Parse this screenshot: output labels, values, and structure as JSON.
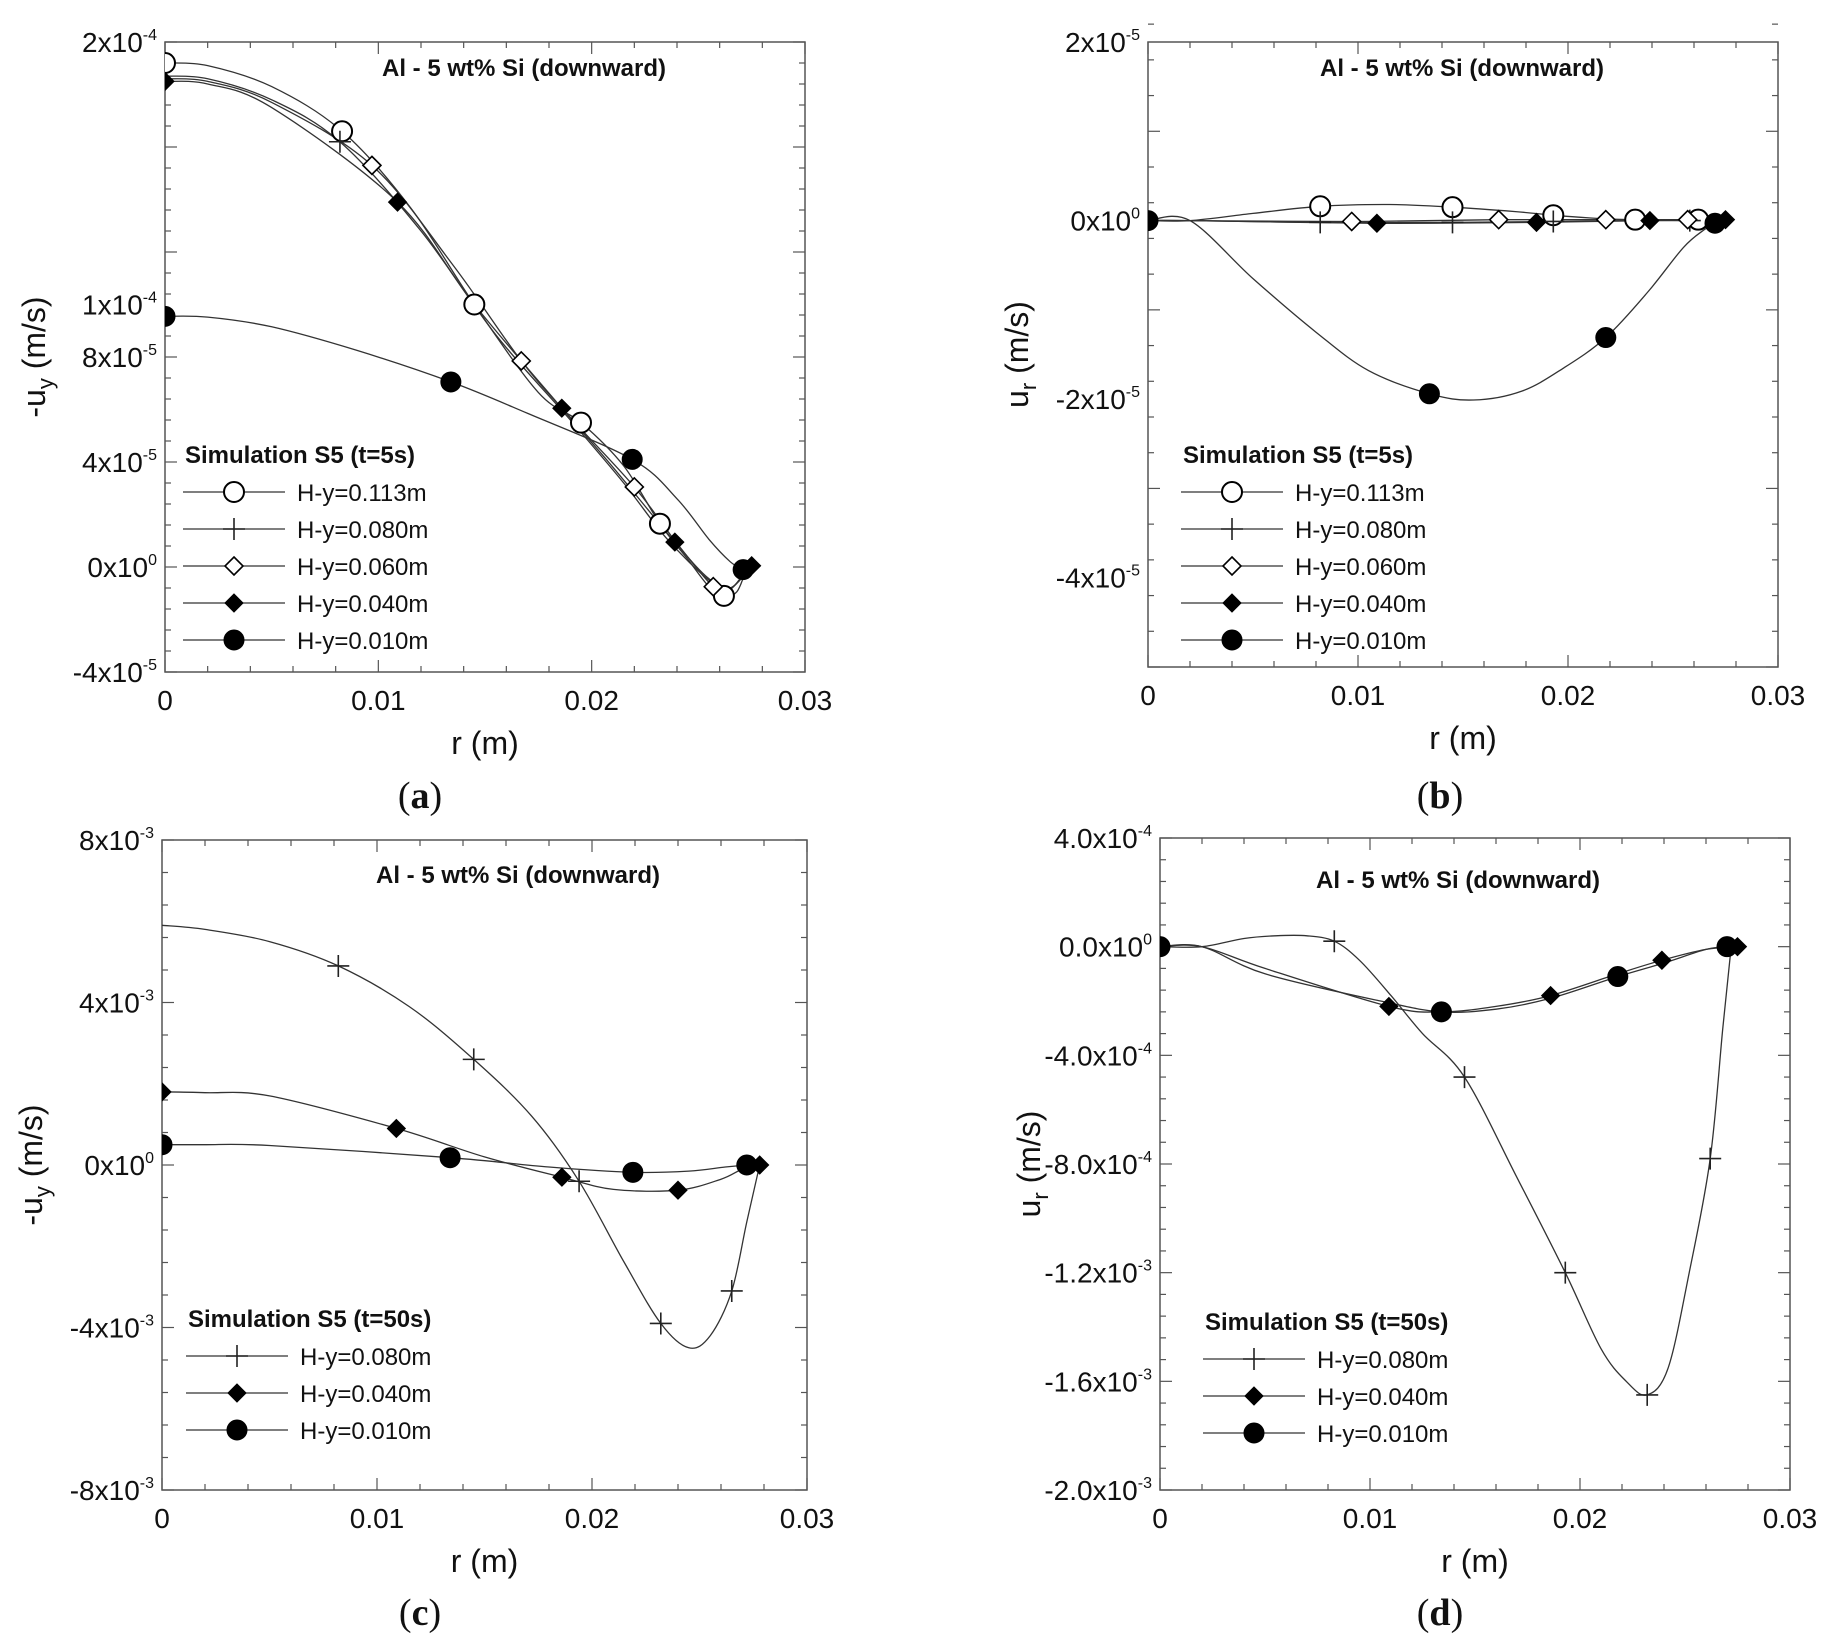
{
  "figure": {
    "panel_labels": [
      "a",
      "b",
      "c",
      "d"
    ],
    "colors": {
      "line": "#333333",
      "marker": "#000000",
      "frame": "#555555"
    }
  },
  "chart_data": [
    {
      "type": "line",
      "panel": "a",
      "title": "Al - 5 wt% Si (downward)",
      "xlabel": "r (m)",
      "ylabel_base": "-u",
      "ylabel_sub": "y",
      "ylabel_unit": " (m/s)",
      "xlim": [
        0,
        0.03
      ],
      "ylim": [
        -4e-05,
        0.0002
      ],
      "xticks": [
        {
          "value": 0,
          "label": "0"
        },
        {
          "value": 0.01,
          "label": "0.01"
        },
        {
          "value": 0.02,
          "label": "0.02"
        },
        {
          "value": 0.03,
          "label": "0.03"
        }
      ],
      "yticks": [
        {
          "value": 0.0002,
          "mant": "2x10",
          "exp": "-4"
        },
        {
          "value": 0.0001,
          "mant": "1x10",
          "exp": "-4"
        },
        {
          "value": 8e-05,
          "mant": "8x10",
          "exp": "-5"
        },
        {
          "value": 4e-05,
          "mant": "4x10",
          "exp": "-5"
        },
        {
          "value": 0,
          "mant": "0x10",
          "exp": "0"
        },
        {
          "value": -4e-05,
          "mant": "-4x10",
          "exp": "-5"
        }
      ],
      "legend_title": "Simulation S5 (t=5s)",
      "series": [
        {
          "name": "H-y=0.113m",
          "marker": "open-circle",
          "x": [
            0,
            0.002,
            0.005,
            0.0083,
            0.0115,
            0.0145,
            0.0175,
            0.0195,
            0.0215,
            0.0232,
            0.0245,
            0.0255,
            0.0262,
            0.0268,
            0.0272
          ],
          "y": [
            0.000192,
            0.000191,
            0.000183,
            0.000166,
            0.000137,
            0.0001,
            6.65e-05,
            5.5e-05,
            3.85e-05,
            1.65e-05,
            3e-06,
            -7.5e-06,
            -1.1e-05,
            -9.5e-06,
            -2e-06
          ],
          "mx": [
            0,
            0.0083,
            0.0145,
            0.0195,
            0.0232,
            0.0262
          ],
          "my": [
            0.000192,
            0.000166,
            0.0001,
            5.5e-05,
            1.65e-05,
            -1.1e-05
          ]
        },
        {
          "name": "H-y=0.080m",
          "marker": "plus",
          "x": [
            0,
            0.002,
            0.005,
            0.0082,
            0.012,
            0.0155,
            0.019,
            0.0215,
            0.0235,
            0.0255,
            0.0265,
            0.0272
          ],
          "y": [
            0.000187,
            0.000186,
            0.000178,
            0.000162,
            0.000128,
            8.85e-05,
            5.6e-05,
            3.2e-05,
            1.1e-05,
            -5e-06,
            -8e-06,
            -1.5e-06
          ],
          "mx": [
            0.0082
          ],
          "my": [
            0.000162
          ]
        },
        {
          "name": "H-y=0.060m",
          "marker": "open-diamond",
          "x": [
            0,
            0.002,
            0.005,
            0.0097,
            0.0135,
            0.0167,
            0.019,
            0.022,
            0.024,
            0.0257,
            0.0265,
            0.0273
          ],
          "y": [
            0.000186,
            0.000185,
            0.000177,
            0.000153,
            0.000115,
            7.85e-05,
            5.7e-05,
            3.05e-05,
            9e-06,
            -7.5e-06,
            -8.5e-06,
            -5e-07
          ],
          "mx": [
            0.0097,
            0.0167,
            0.022,
            0.0257
          ],
          "my": [
            0.000153,
            7.85e-05,
            3.05e-05,
            -7.5e-06
          ]
        },
        {
          "name": "H-y=0.040m",
          "marker": "filled-diamond",
          "x": [
            0,
            0.002,
            0.005,
            0.0109,
            0.0145,
            0.0186,
            0.021,
            0.0239,
            0.0255,
            0.0265,
            0.0275
          ],
          "y": [
            0.000185,
            0.000184,
            0.000175,
            0.000139,
            0.0001,
            6.05e-05,
            3.8e-05,
            9.5e-06,
            -4.5e-06,
            -8e-06,
            5e-07
          ],
          "mx": [
            0,
            0.0109,
            0.0186,
            0.0239,
            0.0275
          ],
          "my": [
            0.000185,
            0.000139,
            6.05e-05,
            9.5e-06,
            5e-07
          ]
        },
        {
          "name": "H-y=0.010m",
          "marker": "filled-circle",
          "x": [
            0,
            0.002,
            0.005,
            0.009,
            0.0134,
            0.017,
            0.0219,
            0.024,
            0.0255,
            0.0265,
            0.0271
          ],
          "y": [
            9.55e-05,
            9.52e-05,
            9.15e-05,
            8.25e-05,
            7.05e-05,
            5.85e-05,
            4.1e-05,
            2.6e-05,
            1.05e-05,
            2e-06,
            -1e-06
          ],
          "mx": [
            0,
            0.0134,
            0.0219,
            0.0271
          ],
          "my": [
            9.55e-05,
            7.05e-05,
            4.1e-05,
            -1e-06
          ]
        }
      ]
    },
    {
      "type": "line",
      "panel": "b",
      "title": "Al - 5 wt% Si (downward)",
      "xlabel": "r (m)",
      "ylabel_base": "u",
      "ylabel_sub": "r",
      "ylabel_unit": " (m/s)",
      "xlim": [
        0,
        0.03
      ],
      "ylim": [
        -5e-05,
        2e-05
      ],
      "xticks": [
        {
          "value": 0,
          "label": "0"
        },
        {
          "value": 0.01,
          "label": "0.01"
        },
        {
          "value": 0.02,
          "label": "0.02"
        },
        {
          "value": 0.03,
          "label": "0.03"
        }
      ],
      "yticks": [
        {
          "value": 2e-05,
          "mant": "2x10",
          "exp": "-5"
        },
        {
          "value": 0,
          "mant": "0x10",
          "exp": "0"
        },
        {
          "value": -2e-05,
          "mant": "-2x10",
          "exp": "-5"
        },
        {
          "value": -4e-05,
          "mant": "-4x10",
          "exp": "-5"
        }
      ],
      "legend_title": "Simulation S5 (t=5s)",
      "series": [
        {
          "name": "H-y=0.113m",
          "marker": "open-circle",
          "x": [
            0,
            0.002,
            0.005,
            0.0082,
            0.0115,
            0.0145,
            0.0175,
            0.0193,
            0.021,
            0.0232,
            0.0262,
            0.0272
          ],
          "y": [
            0,
            0,
            8e-07,
            1.6e-06,
            1.8e-06,
            1.5e-06,
            1e-06,
            6e-07,
            3e-07,
            1e-07,
            1e-07,
            0
          ],
          "mx": [
            0.0082,
            0.0145,
            0.0193,
            0.0232,
            0.0262
          ],
          "my": [
            1.6e-06,
            1.5e-06,
            6e-07,
            1e-07,
            1e-07
          ]
        },
        {
          "name": "H-y=0.080m",
          "marker": "plus",
          "x": [
            0,
            0.002,
            0.008,
            0.0145,
            0.0193,
            0.023,
            0.0258,
            0.0272
          ],
          "y": [
            0,
            0,
            -2e-07,
            -2e-07,
            -1e-07,
            0,
            0,
            0
          ],
          "mx": [
            0.0082,
            0.0145,
            0.0193,
            0.0258
          ],
          "my": [
            -2e-07,
            -2e-07,
            -1e-07,
            0
          ]
        },
        {
          "name": "H-y=0.060m",
          "marker": "open-diamond",
          "x": [
            0,
            0.002,
            0.0097,
            0.0167,
            0.0218,
            0.0257,
            0.0273
          ],
          "y": [
            0,
            0,
            -1e-07,
            1e-07,
            1e-07,
            1e-07,
            0
          ],
          "mx": [
            0.0097,
            0.0167,
            0.0218,
            0.0257
          ],
          "my": [
            -1e-07,
            1e-07,
            1e-07,
            1e-07
          ]
        },
        {
          "name": "H-y=0.040m",
          "marker": "filled-diamond",
          "x": [
            0,
            0.002,
            0.0109,
            0.0185,
            0.0239,
            0.0275
          ],
          "y": [
            0,
            0,
            -3e-07,
            -2e-07,
            0,
            1e-07
          ],
          "mx": [
            0,
            0.0109,
            0.0185,
            0.0239,
            0.0275
          ],
          "my": [
            0,
            -3e-07,
            -2e-07,
            0,
            1e-07
          ]
        },
        {
          "name": "H-y=0.010m",
          "marker": "filled-circle",
          "x": [
            0,
            0.002,
            0.005,
            0.008,
            0.0105,
            0.0134,
            0.0155,
            0.0178,
            0.0198,
            0.0218,
            0.0238,
            0.0255,
            0.0265,
            0.027
          ],
          "y": [
            0,
            0,
            -6.5e-06,
            -1.25e-05,
            -1.68e-05,
            -1.94e-05,
            -2.01e-05,
            -1.91e-05,
            -1.65e-05,
            -1.31e-05,
            -8e-06,
            -3e-06,
            -1e-06,
            -3e-07
          ],
          "mx": [
            0,
            0.0134,
            0.0218,
            0.027
          ],
          "my": [
            0,
            -1.94e-05,
            -1.31e-05,
            -3e-07
          ]
        }
      ]
    },
    {
      "type": "line",
      "panel": "c",
      "title": "Al - 5 wt% Si (downward)",
      "xlabel": "r (m)",
      "ylabel_base": "-u",
      "ylabel_sub": "y",
      "ylabel_unit": " (m/s)",
      "xlim": [
        0,
        0.03
      ],
      "ylim": [
        -0.008,
        0.008
      ],
      "xticks": [
        {
          "value": 0,
          "label": "0"
        },
        {
          "value": 0.01,
          "label": "0.01"
        },
        {
          "value": 0.02,
          "label": "0.02"
        },
        {
          "value": 0.03,
          "label": "0.03"
        }
      ],
      "yticks": [
        {
          "value": 0.008,
          "mant": "8x10",
          "exp": "-3"
        },
        {
          "value": 0.004,
          "mant": "4x10",
          "exp": "-3"
        },
        {
          "value": 0,
          "mant": "0x10",
          "exp": "0"
        },
        {
          "value": -0.004,
          "mant": "-4x10",
          "exp": "-3"
        },
        {
          "value": -0.008,
          "mant": "-8x10",
          "exp": "-3"
        }
      ],
      "legend_title": "Simulation S5 (t=50s)",
      "series": [
        {
          "name": "H-y=0.080m",
          "marker": "plus",
          "x": [
            0,
            0.002,
            0.005,
            0.0082,
            0.0115,
            0.0145,
            0.0172,
            0.0194,
            0.0215,
            0.0232,
            0.0245,
            0.0255,
            0.0265,
            0.0272,
            0.0278
          ],
          "y": [
            0.0059,
            0.0058,
            0.0055,
            0.0049,
            0.0039,
            0.0026,
            0.0012,
            -0.0004,
            -0.0024,
            -0.0039,
            -0.0045,
            -0.0042,
            -0.0031,
            -0.0014,
            0
          ],
          "mx": [
            0.0082,
            0.0145,
            0.0194,
            0.0232,
            0.0265
          ],
          "my": [
            0.0049,
            0.0026,
            -0.0004,
            -0.0039,
            -0.0031
          ]
        },
        {
          "name": "H-y=0.040m",
          "marker": "filled-diamond",
          "x": [
            0,
            0.002,
            0.005,
            0.0109,
            0.015,
            0.0186,
            0.021,
            0.024,
            0.026,
            0.027,
            0.0278
          ],
          "y": [
            0.0018,
            0.00178,
            0.0017,
            0.0009,
            0.0002,
            -0.0003,
            -0.0006,
            -0.00062,
            -0.00035,
            -0.0001,
            0
          ],
          "mx": [
            0,
            0.0109,
            0.0186,
            0.024,
            0.0278
          ],
          "my": [
            0.0018,
            0.0009,
            -0.0003,
            -0.00062,
            0
          ]
        },
        {
          "name": "H-y=0.010m",
          "marker": "filled-circle",
          "x": [
            0,
            0.002,
            0.005,
            0.0134,
            0.018,
            0.0219,
            0.0245,
            0.0262,
            0.0272
          ],
          "y": [
            0.0005,
            0.0005,
            0.00048,
            0.00018,
            -5e-05,
            -0.00018,
            -0.00015,
            -5e-05,
            0
          ],
          "mx": [
            0,
            0.0134,
            0.0219,
            0.0272
          ],
          "my": [
            0.0005,
            0.00018,
            -0.00018,
            0
          ]
        }
      ]
    },
    {
      "type": "line",
      "panel": "d",
      "title": "Al - 5 wt% Si (downward)",
      "xlabel": "r (m)",
      "ylabel_base": "u",
      "ylabel_sub": "r",
      "ylabel_unit": " (m/s)",
      "xlim": [
        0,
        0.03
      ],
      "ylim": [
        -0.002,
        0.0004
      ],
      "xticks": [
        {
          "value": 0,
          "label": "0"
        },
        {
          "value": 0.01,
          "label": "0.01"
        },
        {
          "value": 0.02,
          "label": "0.02"
        },
        {
          "value": 0.03,
          "label": "0.03"
        }
      ],
      "yticks": [
        {
          "value": 0.0004,
          "mant": "4.0x10",
          "exp": "-4"
        },
        {
          "value": 0,
          "mant": "0.0x10",
          "exp": "0"
        },
        {
          "value": -0.0004,
          "mant": "-4.0x10",
          "exp": "-4"
        },
        {
          "value": -0.0008,
          "mant": "-8.0x10",
          "exp": "-4"
        },
        {
          "value": -0.0012,
          "mant": "-1.2x10",
          "exp": "-3"
        },
        {
          "value": -0.0016,
          "mant": "-1.6x10",
          "exp": "-3"
        },
        {
          "value": -0.002,
          "mant": "-2.0x10",
          "exp": "-3"
        }
      ],
      "legend_title": "Simulation S5 (t=50s)",
      "series": [
        {
          "name": "H-y=0.080m",
          "marker": "plus",
          "x": [
            0,
            0.002,
            0.004,
            0.0055,
            0.007,
            0.0083,
            0.0095,
            0.011,
            0.0125,
            0.0145,
            0.017,
            0.0193,
            0.021,
            0.0222,
            0.0232,
            0.0242,
            0.0252,
            0.0262,
            0.0268,
            0.0272
          ],
          "y": [
            0,
            0,
            3e-05,
            4e-05,
            4e-05,
            2e-05,
            -5e-05,
            -0.00018,
            -0.00032,
            -0.00048,
            -0.00085,
            -0.0012,
            -0.00148,
            -0.0016,
            -0.00165,
            -0.00155,
            -0.0012,
            -0.00078,
            -0.0003,
            0
          ],
          "mx": [
            0.0083,
            0.0145,
            0.0193,
            0.0232,
            0.0262
          ],
          "my": [
            2e-05,
            -0.00048,
            -0.0012,
            -0.00165,
            -0.00078
          ]
        },
        {
          "name": "H-y=0.040m",
          "marker": "filled-diamond",
          "x": [
            0,
            0.002,
            0.005,
            0.0109,
            0.0134,
            0.016,
            0.0186,
            0.0218,
            0.0239,
            0.026,
            0.0275
          ],
          "y": [
            0,
            0,
            -8e-05,
            -0.00022,
            -0.00024,
            -0.00022,
            -0.00018,
            -0.0001,
            -5e-05,
            -1e-05,
            0
          ],
          "mx": [
            0,
            0.0109,
            0.0186,
            0.0239,
            0.0275
          ],
          "my": [
            0,
            -0.00022,
            -0.00018,
            -5e-05,
            0
          ]
        },
        {
          "name": "H-y=0.010m",
          "marker": "filled-circle",
          "x": [
            0,
            0.002,
            0.005,
            0.0105,
            0.0134,
            0.016,
            0.0186,
            0.0218,
            0.024,
            0.026,
            0.027
          ],
          "y": [
            0,
            0,
            -0.0001,
            -0.0002,
            -0.00024,
            -0.00023,
            -0.00019,
            -0.00011,
            -6e-05,
            -1e-05,
            0
          ],
          "mx": [
            0,
            0.0134,
            0.0218,
            0.027
          ],
          "my": [
            0,
            -0.00024,
            -0.00011,
            0
          ]
        }
      ]
    }
  ]
}
